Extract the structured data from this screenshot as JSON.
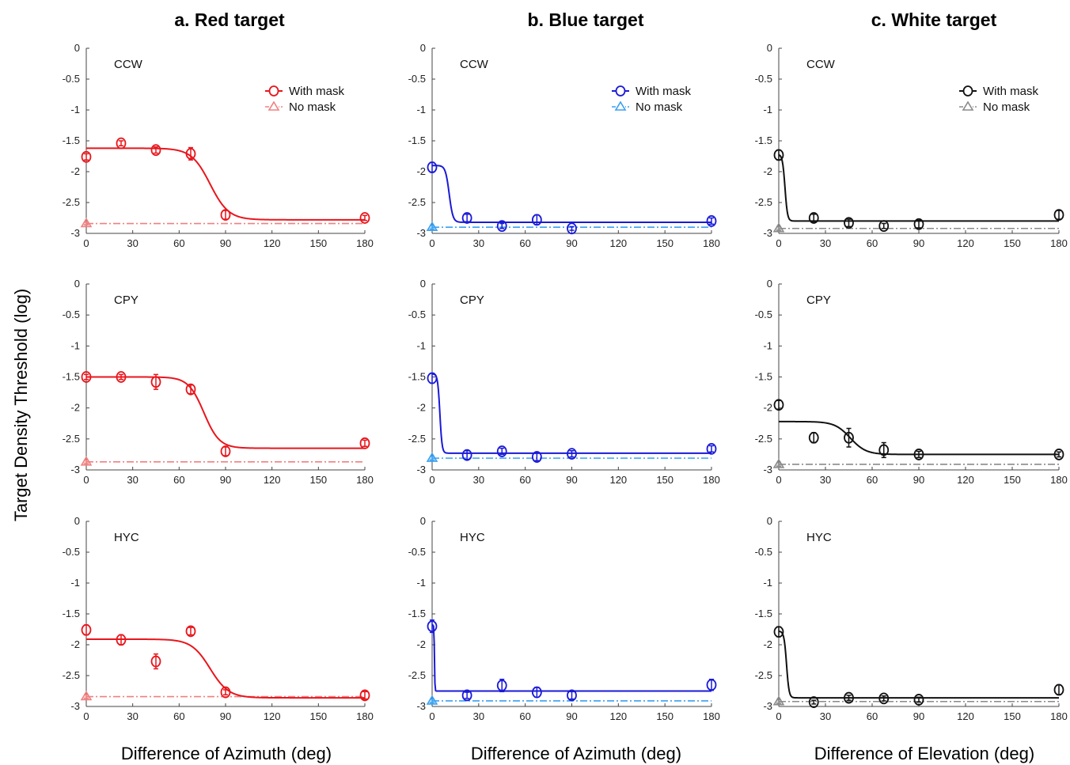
{
  "figure": {
    "y_label": "Target Density Threshold (log)",
    "legend_labels": [
      "With mask",
      "No mask"
    ]
  },
  "chart_data": [
    {
      "type": "line",
      "column": "a. Red target",
      "subject": "CCW",
      "xlabel": "Difference of Azimuth (deg)",
      "ylabel": "Target Density Threshold (log)",
      "xlim": [
        0,
        180
      ],
      "ylim": [
        -3,
        0
      ],
      "xticks": [
        0,
        30,
        60,
        90,
        120,
        150,
        180
      ],
      "yticks": [
        0,
        -0.5,
        -1,
        -1.5,
        -2,
        -2.5,
        -3
      ],
      "mask_color": "#e8161c",
      "nomask_color": "#f08080",
      "fit": {
        "upper": -1.62,
        "lower": -2.78,
        "mid": 80,
        "slope": 6
      },
      "no_mask_level": -2.84,
      "series": [
        {
          "name": "With mask",
          "x": [
            0,
            22.5,
            45,
            67.5,
            90,
            180
          ],
          "y": [
            -1.76,
            -1.54,
            -1.65,
            -1.71,
            -2.7,
            -2.75
          ],
          "err": [
            0.05,
            0.04,
            0.05,
            0.1,
            0.07,
            0.04
          ]
        },
        {
          "name": "No mask",
          "x": [
            0
          ],
          "y": [
            -2.84
          ],
          "err": [
            0.02
          ]
        }
      ]
    },
    {
      "type": "line",
      "column": "b. Blue target",
      "subject": "CCW",
      "xlabel": "Difference of Azimuth (deg)",
      "ylabel": "Target Density Threshold (log)",
      "xlim": [
        0,
        180
      ],
      "ylim": [
        -3,
        0
      ],
      "xticks": [
        0,
        30,
        60,
        90,
        120,
        150,
        180
      ],
      "yticks": [
        0,
        -0.5,
        -1,
        -1.5,
        -2,
        -2.5,
        -3
      ],
      "mask_color": "#1a1ad8",
      "nomask_color": "#3aa0f0",
      "fit": {
        "upper": -1.9,
        "lower": -2.82,
        "mid": 11,
        "slope": 1.2
      },
      "no_mask_level": -2.9,
      "series": [
        {
          "name": "With mask",
          "x": [
            0,
            22.5,
            45,
            67.5,
            90,
            180
          ],
          "y": [
            -1.93,
            -2.75,
            -2.88,
            -2.78,
            -2.92,
            -2.8
          ],
          "err": [
            0.08,
            0.06,
            0.04,
            0.08,
            0.03,
            0.05
          ]
        },
        {
          "name": "No mask",
          "x": [
            0
          ],
          "y": [
            -2.9
          ],
          "err": [
            0.03
          ]
        }
      ]
    },
    {
      "type": "line",
      "column": "c. White target",
      "subject": "CCW",
      "xlabel": "Difference of Elevation (deg)",
      "ylabel": "Target Density Threshold (log)",
      "xlim": [
        0,
        180
      ],
      "ylim": [
        -3,
        0
      ],
      "xticks": [
        0,
        30,
        60,
        90,
        120,
        150,
        180
      ],
      "yticks": [
        0,
        -0.5,
        -1,
        -1.5,
        -2,
        -2.5,
        -3
      ],
      "mask_color": "#111111",
      "nomask_color": "#8a8a8a",
      "fit": {
        "upper": -1.72,
        "lower": -2.8,
        "mid": 4,
        "slope": 0.8
      },
      "no_mask_level": -2.92,
      "series": [
        {
          "name": "With mask",
          "x": [
            0,
            22.5,
            45,
            67.5,
            90,
            180
          ],
          "y": [
            -1.73,
            -2.75,
            -2.83,
            -2.88,
            -2.85,
            -2.7
          ],
          "err": [
            0.08,
            0.06,
            0.06,
            0.04,
            0.06,
            0.07
          ]
        },
        {
          "name": "No mask",
          "x": [
            0
          ],
          "y": [
            -2.92
          ],
          "err": [
            0.03
          ]
        }
      ]
    },
    {
      "type": "line",
      "column": "a. Red target",
      "subject": "CPY",
      "xlabel": "Difference of Azimuth (deg)",
      "ylabel": "Target Density Threshold (log)",
      "xlim": [
        0,
        180
      ],
      "ylim": [
        -3,
        0
      ],
      "xticks": [
        0,
        30,
        60,
        90,
        120,
        150,
        180
      ],
      "yticks": [
        0,
        -0.5,
        -1,
        -1.5,
        -2,
        -2.5,
        -3
      ],
      "mask_color": "#e8161c",
      "nomask_color": "#f08080",
      "fit": {
        "upper": -1.5,
        "lower": -2.65,
        "mid": 76,
        "slope": 5
      },
      "no_mask_level": -2.87,
      "series": [
        {
          "name": "With mask",
          "x": [
            0,
            22.5,
            45,
            67.5,
            90,
            180
          ],
          "y": [
            -1.5,
            -1.5,
            -1.58,
            -1.7,
            -2.7,
            -2.57
          ],
          "err": [
            0.04,
            0.04,
            0.12,
            0.07,
            0.07,
            0.05
          ]
        },
        {
          "name": "No mask",
          "x": [
            0
          ],
          "y": [
            -2.87
          ],
          "err": [
            0.03
          ]
        }
      ]
    },
    {
      "type": "line",
      "column": "b. Blue target",
      "subject": "CPY",
      "xlabel": "Difference of Azimuth (deg)",
      "ylabel": "Target Density Threshold (log)",
      "xlim": [
        0,
        180
      ],
      "ylim": [
        -3,
        0
      ],
      "xticks": [
        0,
        30,
        60,
        90,
        120,
        150,
        180
      ],
      "yticks": [
        0,
        -0.5,
        -1,
        -1.5,
        -2,
        -2.5,
        -3
      ],
      "mask_color": "#1a1ad8",
      "nomask_color": "#3aa0f0",
      "fit": {
        "upper": -1.45,
        "lower": -2.73,
        "mid": 5,
        "slope": 0.7
      },
      "no_mask_level": -2.81,
      "series": [
        {
          "name": "With mask",
          "x": [
            0,
            22.5,
            45,
            67.5,
            90,
            180
          ],
          "y": [
            -1.52,
            -2.76,
            -2.7,
            -2.79,
            -2.74,
            -2.66
          ],
          "err": [
            0.08,
            0.07,
            0.05,
            0.06,
            0.05,
            0.05
          ]
        },
        {
          "name": "No mask",
          "x": [
            0
          ],
          "y": [
            -2.81
          ],
          "err": [
            0.03
          ]
        }
      ]
    },
    {
      "type": "line",
      "column": "c. White target",
      "subject": "CPY",
      "xlabel": "Difference of Elevation (deg)",
      "ylabel": "Target Density Threshold (log)",
      "xlim": [
        0,
        180
      ],
      "ylim": [
        -3,
        0
      ],
      "xticks": [
        0,
        30,
        60,
        90,
        120,
        150,
        180
      ],
      "yticks": [
        0,
        -0.5,
        -1,
        -1.5,
        -2,
        -2.5,
        -3
      ],
      "mask_color": "#111111",
      "nomask_color": "#8a8a8a",
      "fit": {
        "upper": -2.22,
        "lower": -2.75,
        "mid": 46,
        "slope": 5
      },
      "no_mask_level": -2.91,
      "series": [
        {
          "name": "With mask",
          "x": [
            0,
            22.5,
            45,
            67.5,
            90,
            180
          ],
          "y": [
            -1.95,
            -2.48,
            -2.48,
            -2.68,
            -2.75,
            -2.75
          ],
          "err": [
            0.07,
            0.08,
            0.15,
            0.12,
            0.05,
            0.04
          ]
        },
        {
          "name": "No mask",
          "x": [
            0
          ],
          "y": [
            -2.91
          ],
          "err": [
            0.03
          ]
        }
      ]
    },
    {
      "type": "line",
      "column": "a. Red target",
      "subject": "HYC",
      "xlabel": "Difference of Azimuth (deg)",
      "ylabel": "Target Density Threshold (log)",
      "xlim": [
        0,
        180
      ],
      "ylim": [
        -3,
        0
      ],
      "xticks": [
        0,
        30,
        60,
        90,
        120,
        150,
        180
      ],
      "yticks": [
        0,
        -0.5,
        -1,
        -1.5,
        -2,
        -2.5,
        -3
      ],
      "mask_color": "#e8161c",
      "nomask_color": "#f08080",
      "fit": {
        "upper": -1.91,
        "lower": -2.86,
        "mid": 80,
        "slope": 6
      },
      "no_mask_level": -2.84,
      "series": [
        {
          "name": "With mask",
          "x": [
            0,
            22.5,
            45,
            67.5,
            90,
            180
          ],
          "y": [
            -1.76,
            -1.92,
            -2.27,
            -1.78,
            -2.77,
            -2.82
          ],
          "err": [
            0.08,
            0.08,
            0.12,
            0.06,
            0.04,
            0.06
          ]
        },
        {
          "name": "No mask",
          "x": [
            0
          ],
          "y": [
            -2.84
          ],
          "err": [
            0.03
          ]
        }
      ]
    },
    {
      "type": "line",
      "column": "b. Blue target",
      "subject": "HYC",
      "xlabel": "Difference of Azimuth (deg)",
      "ylabel": "Target Density Threshold (log)",
      "xlim": [
        0,
        180
      ],
      "ylim": [
        -3,
        0
      ],
      "xticks": [
        0,
        30,
        60,
        90,
        120,
        150,
        180
      ],
      "yticks": [
        0,
        -0.5,
        -1,
        -1.5,
        -2,
        -2.5,
        -3
      ],
      "mask_color": "#1a1ad8",
      "nomask_color": "#3aa0f0",
      "fit": {
        "upper": -1.68,
        "lower": -2.75,
        "mid": 1.5,
        "slope": 0.15
      },
      "no_mask_level": -2.91,
      "series": [
        {
          "name": "With mask",
          "x": [
            0,
            22.5,
            45,
            67.5,
            90,
            180
          ],
          "y": [
            -1.7,
            -2.82,
            -2.66,
            -2.77,
            -2.82,
            -2.65
          ],
          "err": [
            0.1,
            0.05,
            0.1,
            0.08,
            0.06,
            0.09
          ]
        },
        {
          "name": "No mask",
          "x": [
            0
          ],
          "y": [
            -2.91
          ],
          "err": [
            0.03
          ]
        }
      ]
    },
    {
      "type": "line",
      "column": "c. White target",
      "subject": "HYC",
      "xlabel": "Difference of Elevation (deg)",
      "ylabel": "Target Density Threshold (log)",
      "xlim": [
        0,
        180
      ],
      "ylim": [
        -3,
        0
      ],
      "xticks": [
        0,
        30,
        60,
        90,
        120,
        150,
        180
      ],
      "yticks": [
        0,
        -0.5,
        -1,
        -1.5,
        -2,
        -2.5,
        -3
      ],
      "mask_color": "#111111",
      "nomask_color": "#8a8a8a",
      "fit": {
        "upper": -1.78,
        "lower": -2.86,
        "mid": 5,
        "slope": 0.8
      },
      "no_mask_level": -2.92,
      "series": [
        {
          "name": "With mask",
          "x": [
            0,
            22.5,
            45,
            67.5,
            90,
            180
          ],
          "y": [
            -1.79,
            -2.93,
            -2.86,
            -2.87,
            -2.89,
            -2.73
          ],
          "err": [
            0.08,
            0.03,
            0.04,
            0.04,
            0.04,
            0.08
          ]
        },
        {
          "name": "No mask",
          "x": [
            0
          ],
          "y": [
            -2.92
          ],
          "err": [
            0.03
          ]
        }
      ]
    }
  ]
}
